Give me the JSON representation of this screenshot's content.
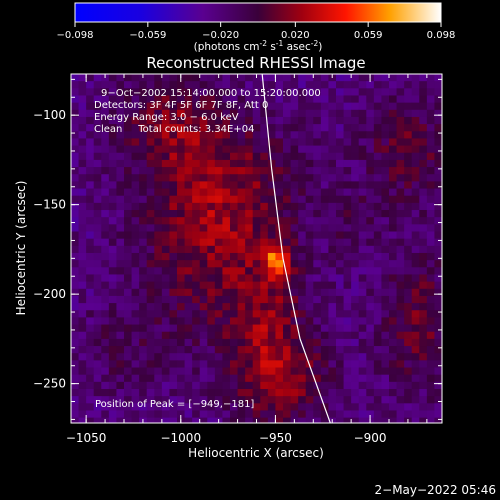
{
  "chart_data": {
    "type": "heatmap",
    "title": "Reconstructed RHESSI Image",
    "colorbar": {
      "range": [
        -0.098,
        0.098
      ],
      "ticks": [
        "-0.098",
        "-0.059",
        "-0.020",
        "0.020",
        "0.059",
        "0.098"
      ],
      "units_prefix": "(photons cm",
      "units_exp1": "-2",
      "units_mid": " s",
      "units_exp2": "-1",
      "units_mid2": " asec",
      "units_exp3": "-2",
      "units_suffix": ")"
    },
    "xlabel": "Heliocentric X (arcsec)",
    "ylabel": "Heliocentric Y (arcsec)",
    "xlim": [
      -1058,
      -862
    ],
    "ylim": [
      -272,
      -77
    ],
    "xticks": [
      {
        "value": -1050,
        "label": "−1050"
      },
      {
        "value": -1000,
        "label": "−1000"
      },
      {
        "value": -950,
        "label": "−950"
      },
      {
        "value": -900,
        "label": "−900"
      }
    ],
    "yticks": [
      {
        "value": -100,
        "label": "−100"
      },
      {
        "value": -150,
        "label": "−150"
      },
      {
        "value": -200,
        "label": "−200"
      },
      {
        "value": -250,
        "label": "−250"
      }
    ],
    "annotations": [
      "9−Oct−2002 15:14:00.000 to 15:20:00.000",
      "Detectors: 3F 4F 5F 6F 7F 8F, Att 0",
      "Energy Range: 3.0 − 6.0 keV",
      "Clean     Total counts: 3.34E+04"
    ],
    "peak_label": "Position of Peak = [−949,−181]",
    "peak": {
      "x": -949,
      "y": -181,
      "value": 0.098
    },
    "limb_curve": [
      {
        "x": -957,
        "y": -77
      },
      {
        "x": -952,
        "y": -130
      },
      {
        "x": -946,
        "y": -180
      },
      {
        "x": -937,
        "y": -225
      },
      {
        "x": -921,
        "y": -272
      }
    ],
    "emission_sources": [
      {
        "x": -1005,
        "y": -105,
        "sx": 20,
        "sy": 18,
        "amp": 0.03
      },
      {
        "x": -975,
        "y": -140,
        "sx": 28,
        "sy": 26,
        "amp": 0.032
      },
      {
        "x": -990,
        "y": -180,
        "sx": 22,
        "sy": 30,
        "amp": 0.026
      },
      {
        "x": -955,
        "y": -215,
        "sx": 16,
        "sy": 28,
        "amp": 0.034
      },
      {
        "x": -945,
        "y": -250,
        "sx": 18,
        "sy": 18,
        "amp": 0.03
      },
      {
        "x": -880,
        "y": -120,
        "sx": 16,
        "sy": 22,
        "amp": 0.028
      },
      {
        "x": -875,
        "y": -215,
        "sx": 14,
        "sy": 26,
        "amp": 0.03
      },
      {
        "x": -1030,
        "y": -230,
        "sx": 18,
        "sy": 18,
        "amp": 0.014
      },
      {
        "x": -910,
        "y": -160,
        "sx": 10,
        "sy": 12,
        "amp": 0.012
      },
      {
        "x": -949,
        "y": -181,
        "sx": 5,
        "sy": 6,
        "amp": 0.065
      }
    ],
    "background_level": -0.022,
    "grid": false
  },
  "footer": {
    "timestamp": "2−May−2022 05:46"
  }
}
